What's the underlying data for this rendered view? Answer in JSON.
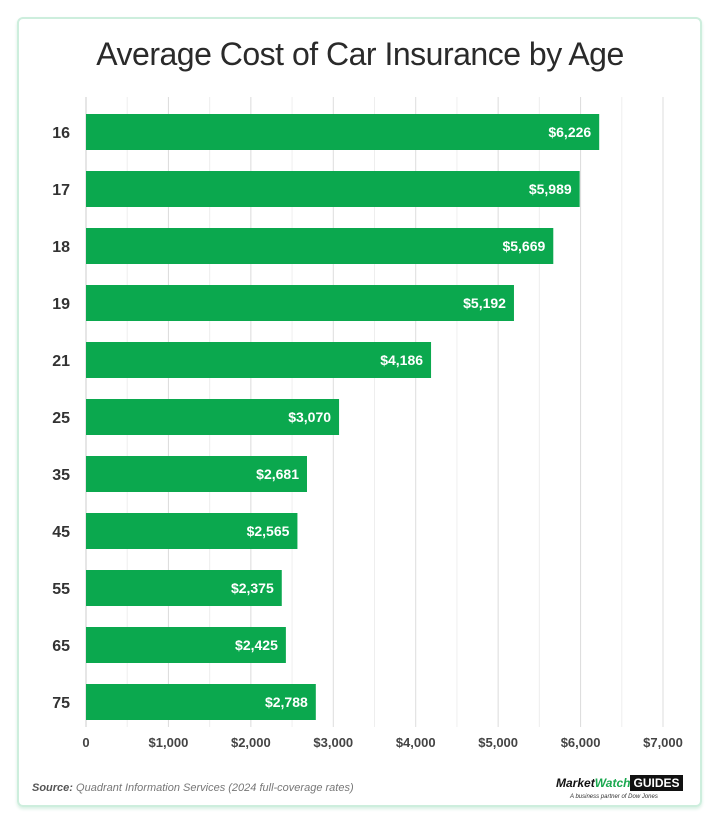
{
  "chart_data": {
    "type": "bar",
    "orientation": "horizontal",
    "title": "Average Cost of Car Insurance by Age",
    "categories": [
      "16",
      "17",
      "18",
      "19",
      "21",
      "25",
      "35",
      "45",
      "55",
      "65",
      "75"
    ],
    "values": [
      6226,
      5989,
      5669,
      5192,
      4186,
      3070,
      2681,
      2565,
      2375,
      2425,
      2788
    ],
    "data_labels": [
      "$6,226",
      "$5,989",
      "$5,669",
      "$5,192",
      "$4,186",
      "$3,070",
      "$2,681",
      "$2,565",
      "$2,375",
      "$2,425",
      "$2,788"
    ],
    "xlim": [
      0,
      7000
    ],
    "x_ticks": [
      0,
      1000,
      2000,
      3000,
      4000,
      5000,
      6000,
      7000
    ],
    "x_tick_labels": [
      "0",
      "$1,000",
      "$2,000",
      "$3,000",
      "$4,000",
      "$5,000",
      "$6,000",
      "$7,000"
    ],
    "grid": true,
    "bar_color": "#0ba84e"
  },
  "footer": {
    "source_label": "Source:",
    "source_text": "Quadrant Information Services (2024 full-coverage rates)",
    "logo_market": "Market",
    "logo_watch": "Watch",
    "logo_guides": "GUIDES",
    "logo_tagline": "A business partner of Dow Jones"
  }
}
